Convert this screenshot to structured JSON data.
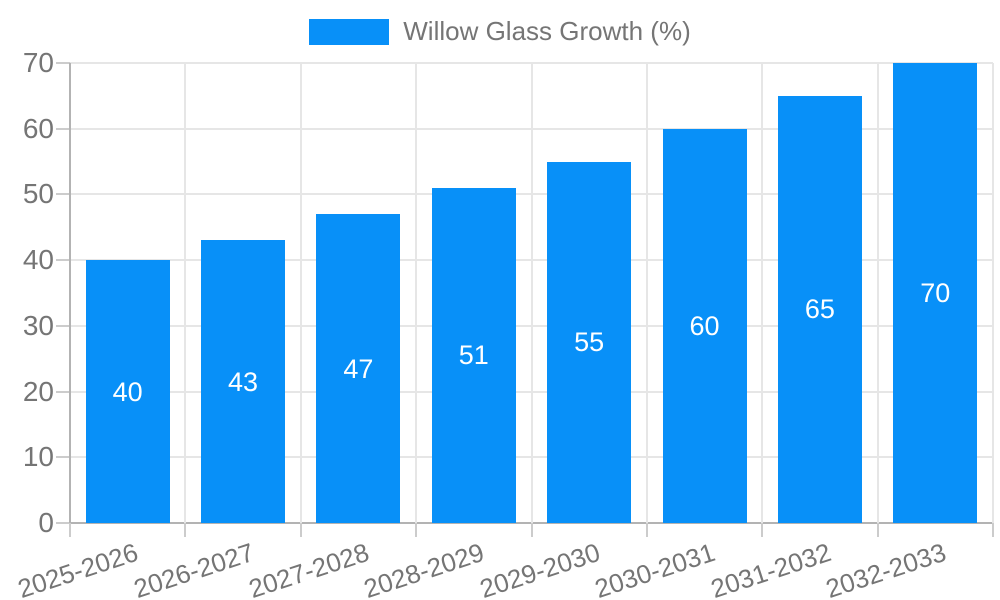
{
  "legend": {
    "label": "Willow Glass Growth (%)"
  },
  "chart_data": {
    "type": "bar",
    "title": "Willow Glass Growth (%)",
    "categories": [
      "2025-2026",
      "2026-2027",
      "2027-2028",
      "2028-2029",
      "2029-2030",
      "2030-2031",
      "2031-2032",
      "2032-2033"
    ],
    "values": [
      40,
      43,
      47,
      51,
      55,
      60,
      65,
      70
    ],
    "bar_labels": [
      "40",
      "43",
      "47",
      "51",
      "55",
      "60",
      "65",
      "70"
    ],
    "xlabel": "",
    "ylabel": "",
    "ylim": [
      0,
      70
    ],
    "yticks": [
      0,
      10,
      20,
      30,
      40,
      50,
      60,
      70
    ],
    "grid": true,
    "legend_position": "top-center"
  },
  "colors": {
    "bar": "#0890f8",
    "bar_label": "#ffffff",
    "grid": "#e6e6e6",
    "axis": "#b3b3b3",
    "tick": "#cccccc",
    "text": "#757575",
    "background": "#ffffff"
  }
}
